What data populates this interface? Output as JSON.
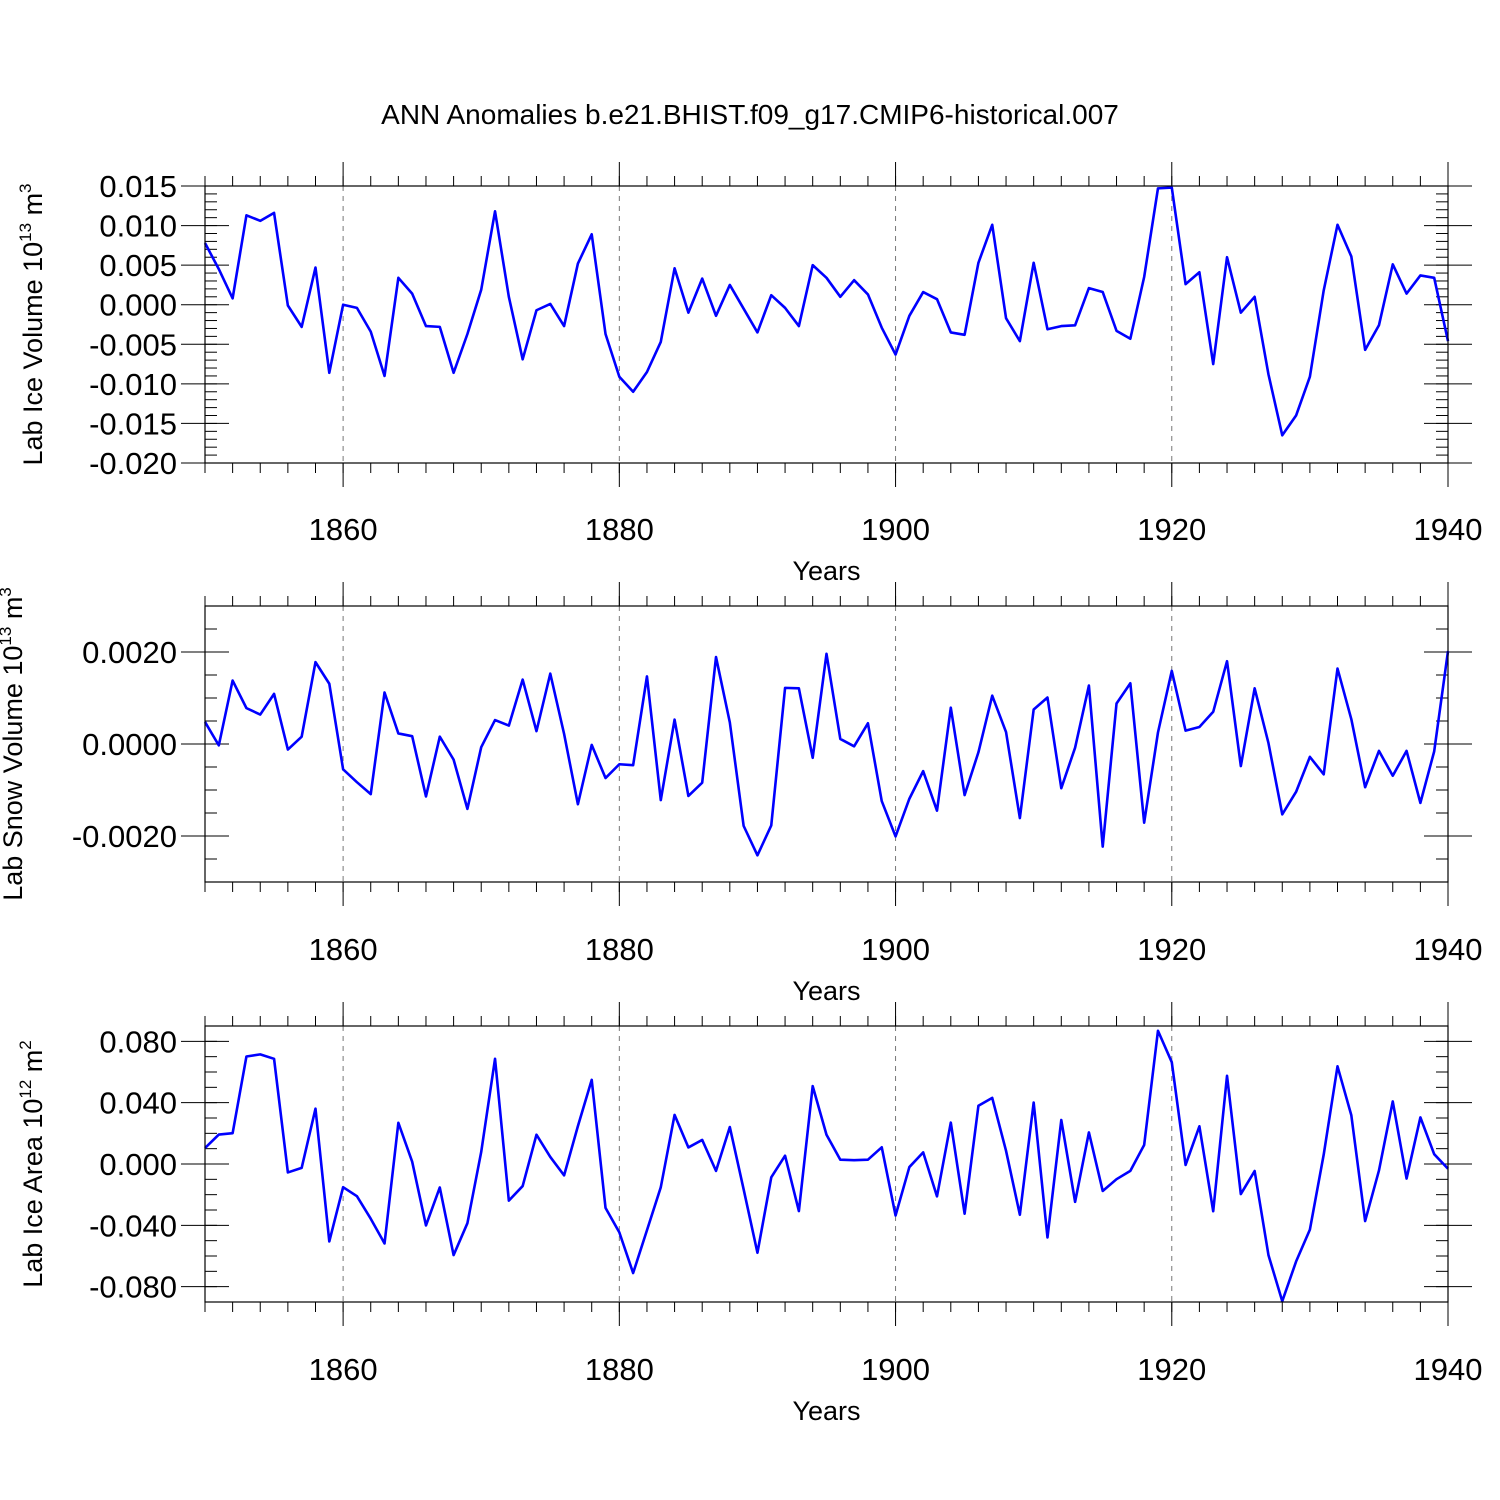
{
  "colors": {
    "series": "#0000ff",
    "frame": "#000000",
    "grid": "#777777"
  },
  "figure": {
    "title": "ANN Anomalies b.e21.BHIST.f09_g17.CMIP6-historical.007"
  },
  "chart_data": [
    {
      "type": "line",
      "ylabel": "Lab Ice Volume 10",
      "ylabel_exp": "13",
      "ylabel_unit": " m",
      "ylabel_unit_exp": "3",
      "xlabel": "Years",
      "xlim": [
        1850,
        1940
      ],
      "ylim": [
        -0.02,
        0.015
      ],
      "xticks": [
        1860,
        1880,
        1900,
        1920,
        1940
      ],
      "xtick_labels": [
        "1860",
        "1880",
        "1900",
        "1920",
        "1940"
      ],
      "yticks": [
        0.015,
        0.01,
        0.005,
        0.0,
        -0.005,
        -0.01,
        -0.015,
        -0.02
      ],
      "ytick_labels": [
        "0.015",
        "0.010",
        "0.005",
        "0.000",
        "-0.005",
        "-0.010",
        "-0.015",
        "-0.020"
      ],
      "yminor_step": 0.001,
      "grid_x": true,
      "x_start": 1850,
      "values": [
        0.0078,
        0.0045,
        0.0008,
        0.0113,
        0.0106,
        0.0116,
        -0.0001,
        -0.0028,
        0.0047,
        -0.0086,
        0.0,
        -0.0004,
        -0.0034,
        -0.009,
        0.0034,
        0.0014,
        -0.0027,
        -0.0028,
        -0.0086,
        -0.0037,
        0.0019,
        0.0118,
        0.001,
        -0.0069,
        -0.0007,
        0.0001,
        -0.0027,
        0.0052,
        0.0089,
        -0.0037,
        -0.0091,
        -0.011,
        -0.0085,
        -0.0047,
        0.0046,
        -0.001,
        0.0033,
        -0.0014,
        0.0025,
        -0.0005,
        -0.0035,
        0.0012,
        -0.0004,
        -0.0027,
        0.005,
        0.0034,
        0.001,
        0.0031,
        0.0013,
        -0.0029,
        -0.0063,
        -0.0014,
        0.0016,
        0.0007,
        -0.0035,
        -0.0038,
        0.0053,
        0.0101,
        -0.0017,
        -0.0046,
        0.0053,
        -0.0031,
        -0.0027,
        -0.0026,
        0.0021,
        0.0016,
        -0.0033,
        -0.0043,
        0.0035,
        0.0147,
        0.0148,
        0.0026,
        0.0041,
        -0.0075,
        0.006,
        -0.001,
        0.001,
        -0.0088,
        -0.0165,
        -0.014,
        -0.0091,
        0.0018,
        0.0101,
        0.0061,
        -0.0057,
        -0.0026,
        0.0051,
        0.0014,
        0.0037,
        0.0034,
        -0.0046
      ]
    },
    {
      "type": "line",
      "ylabel": "Lab Snow Volume 10",
      "ylabel_exp": "13",
      "ylabel_unit": " m",
      "ylabel_unit_exp": "3",
      "xlabel": "Years",
      "xlim": [
        1850,
        1940
      ],
      "ylim": [
        -0.003,
        0.003
      ],
      "xticks": [
        1860,
        1880,
        1900,
        1920,
        1940
      ],
      "xtick_labels": [
        "1860",
        "1880",
        "1900",
        "1920",
        "1940"
      ],
      "yticks": [
        0.002,
        0.0,
        -0.002
      ],
      "ytick_labels": [
        "0.0020",
        "0.0000",
        "-0.0020"
      ],
      "yminor_step": 0.0005,
      "grid_x": true,
      "x_start": 1850,
      "values": [
        0.00048,
        -3e-05,
        0.00138,
        0.00078,
        0.00064,
        0.00109,
        -0.00012,
        0.00016,
        0.00178,
        0.00131,
        -0.00055,
        -0.00083,
        -0.00109,
        0.00112,
        0.00023,
        0.00017,
        -0.00114,
        0.00016,
        -0.00034,
        -0.00141,
        -7e-05,
        0.00052,
        0.0004,
        0.0014,
        0.00028,
        0.00153,
        0.00022,
        -0.00131,
        -2e-05,
        -0.00074,
        -0.00044,
        -0.00046,
        0.00147,
        -0.00122,
        0.00053,
        -0.00113,
        -0.00084,
        0.00189,
        0.00047,
        -0.00178,
        -0.00242,
        -0.00177,
        0.00122,
        0.00121,
        -0.0003,
        0.00196,
        0.00011,
        -5e-05,
        0.00045,
        -0.00124,
        -0.00201,
        -0.00119,
        -0.00059,
        -0.00145,
        0.00079,
        -0.00111,
        -0.00018,
        0.00105,
        0.00026,
        -0.00161,
        0.00075,
        0.00101,
        -0.00096,
        -8e-05,
        0.00127,
        -0.00223,
        0.00088,
        0.00132,
        -0.00171,
        0.00025,
        0.00159,
        0.00029,
        0.00037,
        0.0007,
        0.0018,
        -0.00048,
        0.00121,
        2e-05,
        -0.00153,
        -0.00104,
        -0.00028,
        -0.00066,
        0.00164,
        0.00054,
        -0.00094,
        -0.00015,
        -0.00069,
        -0.00015,
        -0.00128,
        -0.00016,
        0.00202
      ]
    },
    {
      "type": "line",
      "ylabel": "Lab Ice Area 10",
      "ylabel_exp": "12",
      "ylabel_unit": " m",
      "ylabel_unit_exp": "2",
      "xlabel": "Years",
      "xlim": [
        1850,
        1940
      ],
      "ylim": [
        -0.09,
        0.09
      ],
      "xticks": [
        1860,
        1880,
        1900,
        1920,
        1940
      ],
      "xtick_labels": [
        "1860",
        "1880",
        "1900",
        "1920",
        "1940"
      ],
      "yticks": [
        0.08,
        0.04,
        0.0,
        -0.04,
        -0.08
      ],
      "ytick_labels": [
        "0.080",
        "0.040",
        "0.000",
        "-0.040",
        "-0.080"
      ],
      "yminor_step": 0.01,
      "grid_x": true,
      "x_start": 1850,
      "values": [
        0.0104,
        0.0192,
        0.0201,
        0.0701,
        0.0715,
        0.0686,
        -0.0055,
        -0.0025,
        0.0361,
        -0.0505,
        -0.0151,
        -0.021,
        -0.0357,
        -0.0518,
        0.0269,
        0.0015,
        -0.0401,
        -0.0153,
        -0.0594,
        -0.0386,
        0.0079,
        0.0686,
        -0.0239,
        -0.0144,
        0.0191,
        0.0046,
        -0.0074,
        0.0247,
        0.0549,
        -0.0286,
        -0.0446,
        -0.0711,
        -0.0432,
        -0.0152,
        0.032,
        0.0108,
        0.0157,
        -0.0045,
        0.0241,
        -0.0165,
        -0.0579,
        -0.0087,
        0.0054,
        -0.0307,
        0.0508,
        0.0191,
        0.0028,
        0.0025,
        0.0028,
        0.0109,
        -0.0336,
        -0.002,
        0.0076,
        -0.0211,
        0.027,
        -0.0324,
        0.038,
        0.0431,
        0.0086,
        -0.0331,
        0.0401,
        -0.0479,
        0.0287,
        -0.0247,
        0.0206,
        -0.0176,
        -0.0099,
        -0.0045,
        0.0124,
        0.0869,
        0.0664,
        -0.0006,
        0.0246,
        -0.0308,
        0.0575,
        -0.0196,
        -0.0046,
        -0.0594,
        -0.0895,
        -0.0636,
        -0.0428,
        0.0061,
        0.0637,
        0.0318,
        -0.0372,
        -0.0043,
        0.0408,
        -0.0095,
        0.0304,
        0.0064,
        -0.0031
      ]
    }
  ]
}
